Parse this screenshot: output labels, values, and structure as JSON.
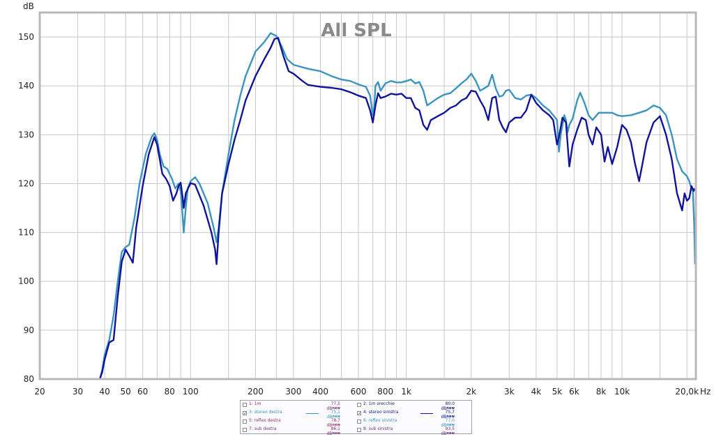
{
  "chart_data": {
    "type": "line",
    "title": "All SPL",
    "ylabel": "dB",
    "xlabel": "Hz",
    "x_scale": "log",
    "xlim": [
      20,
      22000
    ],
    "ylim": [
      80,
      155
    ],
    "grid": true,
    "x_ticks": [
      {
        "v": 20,
        "label": "20"
      },
      {
        "v": 30,
        "label": "30"
      },
      {
        "v": 40,
        "label": "40"
      },
      {
        "v": 50,
        "label": "50"
      },
      {
        "v": 60,
        "label": "60"
      },
      {
        "v": 80,
        "label": "80"
      },
      {
        "v": 100,
        "label": "100"
      },
      {
        "v": 200,
        "label": "200"
      },
      {
        "v": 300,
        "label": "300"
      },
      {
        "v": 400,
        "label": "400"
      },
      {
        "v": 600,
        "label": "600"
      },
      {
        "v": 800,
        "label": "800"
      },
      {
        "v": 1000,
        "label": "1k"
      },
      {
        "v": 2000,
        "label": "2k"
      },
      {
        "v": 3000,
        "label": "3k"
      },
      {
        "v": 4000,
        "label": "4k"
      },
      {
        "v": 5000,
        "label": "5k"
      },
      {
        "v": 6000,
        "label": "6k"
      },
      {
        "v": 8000,
        "label": "8k"
      },
      {
        "v": 10000,
        "label": "10k"
      },
      {
        "v": 20000,
        "label": "20,0k"
      }
    ],
    "x_minor_grid": [
      70,
      90,
      150,
      250,
      500,
      700,
      900,
      1500,
      7000,
      9000,
      15000
    ],
    "y_ticks": [
      {
        "v": 80,
        "label": "80"
      },
      {
        "v": 90,
        "label": "90"
      },
      {
        "v": 100,
        "label": "100"
      },
      {
        "v": 110,
        "label": "110"
      },
      {
        "v": 120,
        "label": "120"
      },
      {
        "v": 130,
        "label": "130"
      },
      {
        "v": 140,
        "label": "140"
      },
      {
        "v": 150,
        "label": "150"
      }
    ],
    "series": [
      {
        "name": "3: stereo destra",
        "color": "#3a94bf",
        "points": [
          [
            38,
            80
          ],
          [
            39,
            82
          ],
          [
            40,
            85
          ],
          [
            42,
            88
          ],
          [
            44,
            93
          ],
          [
            46,
            100
          ],
          [
            48,
            106
          ],
          [
            50,
            107
          ],
          [
            52,
            107.5
          ],
          [
            55,
            113
          ],
          [
            58,
            120
          ],
          [
            62,
            126
          ],
          [
            66,
            129.5
          ],
          [
            68,
            130.3
          ],
          [
            70,
            129
          ],
          [
            72,
            126
          ],
          [
            75,
            123.5
          ],
          [
            78,
            123
          ],
          [
            82,
            121
          ],
          [
            85,
            119
          ],
          [
            88,
            120
          ],
          [
            90,
            118.5
          ],
          [
            92,
            113
          ],
          [
            93,
            110
          ],
          [
            95,
            115
          ],
          [
            97,
            119
          ],
          [
            100,
            120.5
          ],
          [
            105,
            121.3
          ],
          [
            110,
            120
          ],
          [
            120,
            116
          ],
          [
            128,
            111
          ],
          [
            132,
            108
          ],
          [
            135,
            111
          ],
          [
            140,
            118
          ],
          [
            150,
            126
          ],
          [
            160,
            133
          ],
          [
            170,
            138
          ],
          [
            180,
            142
          ],
          [
            200,
            147
          ],
          [
            220,
            149
          ],
          [
            235,
            150.8
          ],
          [
            250,
            150.2
          ],
          [
            265,
            148
          ],
          [
            280,
            145.5
          ],
          [
            300,
            144.3
          ],
          [
            350,
            143.5
          ],
          [
            400,
            143
          ],
          [
            450,
            142
          ],
          [
            500,
            141.3
          ],
          [
            550,
            141
          ],
          [
            600,
            140.3
          ],
          [
            650,
            139.8
          ],
          [
            680,
            138
          ],
          [
            700,
            134
          ],
          [
            710,
            135.5
          ],
          [
            720,
            140
          ],
          [
            740,
            140.8
          ],
          [
            760,
            139
          ],
          [
            800,
            140.5
          ],
          [
            850,
            141
          ],
          [
            900,
            140.7
          ],
          [
            950,
            140.7
          ],
          [
            1000,
            141
          ],
          [
            1050,
            141.3
          ],
          [
            1100,
            140.5
          ],
          [
            1150,
            140.8
          ],
          [
            1200,
            139
          ],
          [
            1250,
            136
          ],
          [
            1300,
            136.5
          ],
          [
            1400,
            137.5
          ],
          [
            1500,
            138.2
          ],
          [
            1600,
            138.5
          ],
          [
            1700,
            139.5
          ],
          [
            1800,
            140.5
          ],
          [
            1900,
            141.3
          ],
          [
            2000,
            142.5
          ],
          [
            2100,
            141
          ],
          [
            2200,
            139
          ],
          [
            2300,
            139.5
          ],
          [
            2400,
            140
          ],
          [
            2500,
            142.3
          ],
          [
            2600,
            139.5
          ],
          [
            2700,
            137.8
          ],
          [
            2800,
            138
          ],
          [
            2900,
            139
          ],
          [
            3000,
            139.2
          ],
          [
            3200,
            137.5
          ],
          [
            3400,
            137.2
          ],
          [
            3600,
            138
          ],
          [
            3800,
            138.2
          ],
          [
            4000,
            137.5
          ],
          [
            4300,
            136
          ],
          [
            4600,
            135
          ],
          [
            4800,
            134
          ],
          [
            5000,
            133
          ],
          [
            5100,
            126.5
          ],
          [
            5200,
            130
          ],
          [
            5400,
            134
          ],
          [
            5500,
            133
          ],
          [
            5600,
            130.5
          ],
          [
            5700,
            132
          ],
          [
            5900,
            133.3
          ],
          [
            6200,
            137
          ],
          [
            6400,
            138.6
          ],
          [
            6700,
            136.5
          ],
          [
            7000,
            134
          ],
          [
            7300,
            133
          ],
          [
            7800,
            134.5
          ],
          [
            8300,
            134.5
          ],
          [
            9000,
            134.5
          ],
          [
            9500,
            134
          ],
          [
            10000,
            133.8
          ],
          [
            11000,
            134
          ],
          [
            12000,
            134.5
          ],
          [
            13000,
            135
          ],
          [
            14000,
            136
          ],
          [
            15000,
            135.5
          ],
          [
            16000,
            134
          ],
          [
            17000,
            130
          ],
          [
            18000,
            125
          ],
          [
            19000,
            122.5
          ],
          [
            20000,
            121.5
          ],
          [
            20500,
            120.5
          ],
          [
            21000,
            119
          ],
          [
            21300,
            118.5
          ],
          [
            21600,
            112
          ],
          [
            21800,
            103.5
          ]
        ]
      },
      {
        "name": "4: stereo sinistra",
        "color": "#101499",
        "points": [
          [
            38,
            80
          ],
          [
            39,
            81.5
          ],
          [
            40,
            84
          ],
          [
            42,
            87.5
          ],
          [
            44,
            88
          ],
          [
            46,
            97
          ],
          [
            48,
            104
          ],
          [
            50,
            106.5
          ],
          [
            52,
            105.2
          ],
          [
            54,
            103.8
          ],
          [
            56,
            111
          ],
          [
            60,
            119.5
          ],
          [
            64,
            126
          ],
          [
            68,
            129.5
          ],
          [
            70,
            128
          ],
          [
            72,
            125
          ],
          [
            74,
            122
          ],
          [
            77,
            121
          ],
          [
            80,
            119.5
          ],
          [
            83,
            116.5
          ],
          [
            86,
            118
          ],
          [
            88,
            119.5
          ],
          [
            90,
            120.2
          ],
          [
            92,
            117
          ],
          [
            93,
            115
          ],
          [
            95,
            118
          ],
          [
            100,
            120.1
          ],
          [
            105,
            119.8
          ],
          [
            115,
            115.5
          ],
          [
            125,
            110
          ],
          [
            130,
            106.5
          ],
          [
            132,
            103.5
          ],
          [
            135,
            110
          ],
          [
            140,
            118
          ],
          [
            150,
            124
          ],
          [
            160,
            129
          ],
          [
            170,
            133
          ],
          [
            180,
            137
          ],
          [
            200,
            142
          ],
          [
            220,
            145.5
          ],
          [
            235,
            147.8
          ],
          [
            245,
            149.6
          ],
          [
            255,
            149.8
          ],
          [
            270,
            146
          ],
          [
            285,
            143
          ],
          [
            300,
            142.5
          ],
          [
            330,
            141
          ],
          [
            350,
            140.2
          ],
          [
            400,
            139.8
          ],
          [
            450,
            139.6
          ],
          [
            500,
            139.3
          ],
          [
            550,
            138.7
          ],
          [
            600,
            138
          ],
          [
            650,
            137.5
          ],
          [
            680,
            135
          ],
          [
            700,
            132.5
          ],
          [
            720,
            136
          ],
          [
            740,
            138.5
          ],
          [
            760,
            137.5
          ],
          [
            800,
            137.8
          ],
          [
            850,
            138.4
          ],
          [
            900,
            138.2
          ],
          [
            950,
            138.4
          ],
          [
            1000,
            137.5
          ],
          [
            1050,
            137.5
          ],
          [
            1100,
            135.5
          ],
          [
            1150,
            135
          ],
          [
            1200,
            132
          ],
          [
            1250,
            131
          ],
          [
            1300,
            133
          ],
          [
            1400,
            133.8
          ],
          [
            1500,
            134.5
          ],
          [
            1600,
            135.5
          ],
          [
            1700,
            136
          ],
          [
            1800,
            137
          ],
          [
            1900,
            137.5
          ],
          [
            2000,
            139
          ],
          [
            2100,
            138.8
          ],
          [
            2200,
            137
          ],
          [
            2300,
            135.5
          ],
          [
            2400,
            133
          ],
          [
            2500,
            137.5
          ],
          [
            2600,
            137.8
          ],
          [
            2700,
            133
          ],
          [
            2800,
            131.5
          ],
          [
            2900,
            130.5
          ],
          [
            3000,
            132.5
          ],
          [
            3200,
            133.5
          ],
          [
            3400,
            133.5
          ],
          [
            3600,
            135
          ],
          [
            3800,
            138.2
          ],
          [
            4000,
            136.5
          ],
          [
            4300,
            135
          ],
          [
            4600,
            134
          ],
          [
            4800,
            133
          ],
          [
            5000,
            128
          ],
          [
            5100,
            129.5
          ],
          [
            5300,
            133.5
          ],
          [
            5500,
            132.5
          ],
          [
            5700,
            123.5
          ],
          [
            5900,
            128
          ],
          [
            6200,
            131
          ],
          [
            6500,
            133.5
          ],
          [
            6800,
            133
          ],
          [
            7000,
            130
          ],
          [
            7300,
            128
          ],
          [
            7600,
            131.5
          ],
          [
            8000,
            130
          ],
          [
            8300,
            124.5
          ],
          [
            8600,
            127.5
          ],
          [
            9000,
            124
          ],
          [
            9500,
            127.5
          ],
          [
            10000,
            132
          ],
          [
            10500,
            131
          ],
          [
            11000,
            128.5
          ],
          [
            11500,
            124
          ],
          [
            12000,
            120.5
          ],
          [
            12500,
            124.5
          ],
          [
            13000,
            128.5
          ],
          [
            14000,
            132.5
          ],
          [
            15000,
            133.8
          ],
          [
            16000,
            130
          ],
          [
            17000,
            125
          ],
          [
            18000,
            118
          ],
          [
            19000,
            114.5
          ],
          [
            19500,
            118
          ],
          [
            20000,
            116.5
          ],
          [
            20500,
            117
          ],
          [
            21000,
            119.5
          ],
          [
            21500,
            118.5
          ],
          [
            21700,
            119
          ]
        ]
      }
    ]
  },
  "legend": {
    "rows": [
      {
        "left": {
          "name": "1: 1m",
          "checked": false,
          "value": "77,5 dB",
          "color": "#7a2f7a"
        },
        "right": {
          "name": "2: 1m orecchie",
          "checked": false,
          "value": "80,0 dB",
          "color": "#222266"
        }
      },
      {
        "left": {
          "name": "3: stereo destra",
          "checked": true,
          "value": "75,1 dB",
          "color": "#3a94bf",
          "swatch": "#3a94bf"
        },
        "right": {
          "name": "4: stereo sinistra",
          "checked": true,
          "value": "75,7 dB",
          "color": "#101499",
          "swatch": "#101499"
        }
      },
      {
        "left": {
          "name": "5: reflex destra",
          "checked": false,
          "value": "78,7 dB",
          "color": "#9a2f6a"
        },
        "right": {
          "name": "6: reflex sinistra",
          "checked": false,
          "value": "77,0 dB",
          "color": "#3a94bf"
        }
      },
      {
        "left": {
          "name": "7: sub destra",
          "checked": false,
          "value": "86,1 dB",
          "color": "#7a2f7a"
        },
        "right": {
          "name": "8: sub sinistra",
          "checked": false,
          "value": "93,5 dB",
          "color": "#6a2f7a"
        }
      }
    ],
    "new_label": "new"
  }
}
